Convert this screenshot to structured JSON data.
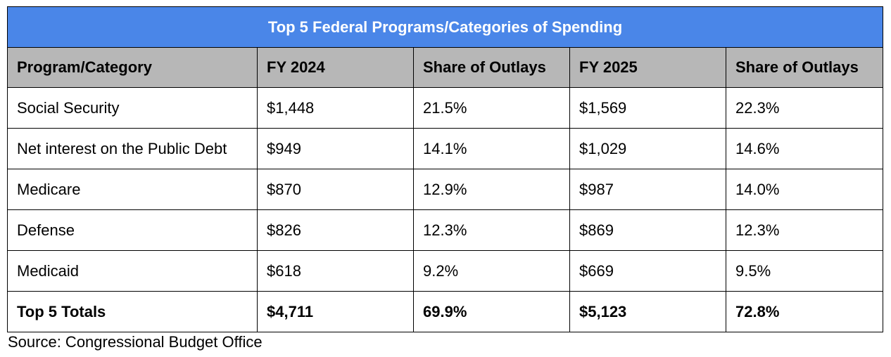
{
  "table": {
    "title": "Top 5 Federal Programs/Categories of Spending",
    "headers": [
      "Program/Category",
      "FY 2024",
      "Share of Outlays",
      "FY 2025",
      "Share of Outlays"
    ],
    "rows": [
      [
        "Social Security",
        "$1,448",
        "21.5%",
        "$1,569",
        "22.3%"
      ],
      [
        "Net interest on the Public Debt",
        "$949",
        "14.1%",
        "$1,029",
        "14.6%"
      ],
      [
        "Medicare",
        "$870",
        "12.9%",
        "$987",
        "14.0%"
      ],
      [
        "Defense",
        "$826",
        "12.3%",
        "$869",
        "12.3%"
      ],
      [
        "Medicaid",
        "$618",
        "9.2%",
        "$669",
        "9.5%"
      ]
    ],
    "totals": [
      "Top 5 Totals",
      "$4,711",
      "69.9%",
      "$5,123",
      "72.8%"
    ]
  },
  "footer": {
    "source": "Source: Congressional Budget Office"
  },
  "colors": {
    "title_bg": "#4a86e8",
    "header_bg": "#b7b7b7",
    "border": "#000000"
  }
}
